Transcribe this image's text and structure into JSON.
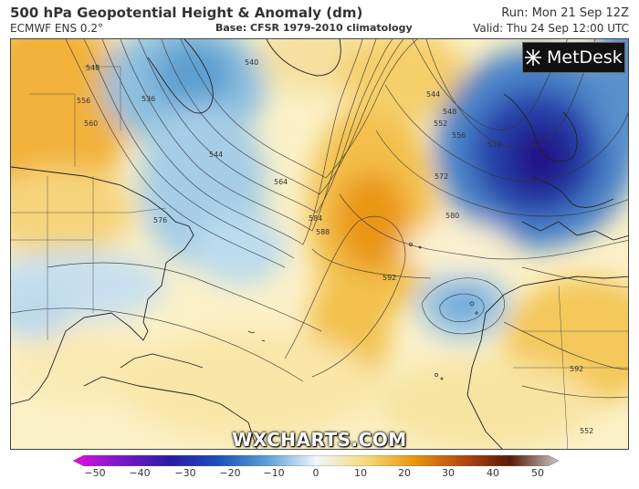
{
  "header": {
    "title": "500 hPa Geopotential Height & Anomaly (dm)",
    "model": "ECMWF ENS 0.2°",
    "base": "Base: CFSR 1979-2010 climatology",
    "run": "Run: Mon 21 Sep 12Z",
    "valid": "Valid: Thu 24 Sep 12:00 UTC"
  },
  "logo": {
    "text": "MetDesk"
  },
  "watermark": "WXCHARTS.COM",
  "colorbar": {
    "ticks": [
      "−50",
      "−40",
      "−30",
      "−20",
      "−10",
      "0",
      "10",
      "20",
      "30",
      "40",
      "50"
    ],
    "colors": [
      "#e010e0",
      "#7a18c8",
      "#2c1aa6",
      "#1f4fb8",
      "#5aa0d8",
      "#eef6fb",
      "#f7dc80",
      "#e9980f",
      "#b64a10",
      "#5a1a08",
      "#c8c8c8"
    ]
  },
  "contour_labels": [
    "548",
    "556",
    "560",
    "536",
    "540",
    "544",
    "544",
    "548",
    "552",
    "556",
    "532",
    "576",
    "572",
    "580",
    "584",
    "588",
    "592",
    "592",
    "564",
    "552"
  ]
}
